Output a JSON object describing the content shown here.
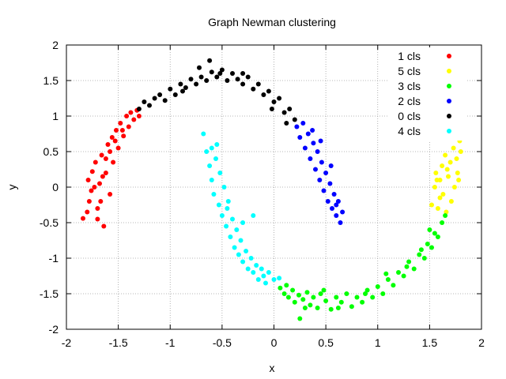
{
  "chart_data": {
    "type": "scatter",
    "title": "Graph Newman clustering",
    "xlabel": "x",
    "ylabel": "y",
    "xlim": [
      -2,
      2
    ],
    "ylim": [
      -2,
      2
    ],
    "xticks": [
      -2,
      -1.5,
      -1,
      -0.5,
      0,
      0.5,
      1,
      1.5,
      2
    ],
    "yticks": [
      -2,
      -1.5,
      -1,
      -0.5,
      0,
      0.5,
      1,
      1.5,
      2
    ],
    "grid": true,
    "legend_position": "top-right",
    "series": [
      {
        "name": "1 cls",
        "color": "#ff0000",
        "points": [
          [
            -1.84,
            -0.44
          ],
          [
            -1.8,
            -0.35
          ],
          [
            -1.78,
            -0.2
          ],
          [
            -1.76,
            -0.05
          ],
          [
            -1.79,
            0.1
          ],
          [
            -1.75,
            0.22
          ],
          [
            -1.72,
            0.35
          ],
          [
            -1.7,
            -0.3
          ],
          [
            -1.68,
            0.05
          ],
          [
            -1.66,
            0.45
          ],
          [
            -1.64,
            -0.55
          ],
          [
            -1.62,
            0.2
          ],
          [
            -1.6,
            0.6
          ],
          [
            -1.58,
            -0.1
          ],
          [
            -1.56,
            0.7
          ],
          [
            -1.55,
            0.35
          ],
          [
            -1.52,
            0.8
          ],
          [
            -1.5,
            0.55
          ],
          [
            -1.48,
            0.9
          ],
          [
            -1.45,
            0.72
          ],
          [
            -1.42,
            1.0
          ],
          [
            -1.4,
            0.85
          ],
          [
            -1.38,
            1.05
          ],
          [
            -1.35,
            0.95
          ],
          [
            -1.32,
            1.08
          ],
          [
            -1.3,
            1.0
          ],
          [
            -1.7,
            -0.45
          ],
          [
            -1.73,
            0.0
          ],
          [
            -1.62,
            0.4
          ],
          [
            -1.58,
            0.5
          ],
          [
            -1.67,
            -0.2
          ],
          [
            -1.65,
            0.15
          ],
          [
            -1.53,
            0.65
          ],
          [
            -1.46,
            0.8
          ]
        ]
      },
      {
        "name": "5 cls",
        "color": "#ffff00",
        "points": [
          [
            1.52,
            -0.25
          ],
          [
            1.55,
            0.0
          ],
          [
            1.56,
            0.2
          ],
          [
            1.58,
            -0.3
          ],
          [
            1.6,
            0.1
          ],
          [
            1.62,
            0.3
          ],
          [
            1.63,
            -0.1
          ],
          [
            1.65,
            0.45
          ],
          [
            1.66,
            -0.35
          ],
          [
            1.68,
            0.15
          ],
          [
            1.7,
            0.35
          ],
          [
            1.71,
            -0.2
          ],
          [
            1.73,
            0.55
          ],
          [
            1.74,
            0.0
          ],
          [
            1.76,
            0.4
          ],
          [
            1.77,
            0.2
          ],
          [
            1.79,
            0.65
          ],
          [
            1.8,
            0.5
          ],
          [
            1.78,
            0.1
          ],
          [
            1.67,
            0.25
          ],
          [
            1.6,
            -0.15
          ],
          [
            1.57,
            0.1
          ]
        ]
      },
      {
        "name": "3 cls",
        "color": "#00ff00",
        "points": [
          [
            0.06,
            -1.42
          ],
          [
            0.1,
            -1.5
          ],
          [
            0.14,
            -1.55
          ],
          [
            0.18,
            -1.45
          ],
          [
            0.2,
            -1.62
          ],
          [
            0.24,
            -1.52
          ],
          [
            0.25,
            -1.85
          ],
          [
            0.28,
            -1.58
          ],
          [
            0.32,
            -1.48
          ],
          [
            0.35,
            -1.66
          ],
          [
            0.38,
            -1.55
          ],
          [
            0.42,
            -1.7
          ],
          [
            0.45,
            -1.5
          ],
          [
            0.5,
            -1.6
          ],
          [
            0.55,
            -1.72
          ],
          [
            0.6,
            -1.55
          ],
          [
            0.65,
            -1.62
          ],
          [
            0.7,
            -1.5
          ],
          [
            0.75,
            -1.68
          ],
          [
            0.8,
            -1.55
          ],
          [
            0.85,
            -1.62
          ],
          [
            0.9,
            -1.45
          ],
          [
            0.95,
            -1.55
          ],
          [
            1.0,
            -1.4
          ],
          [
            1.05,
            -1.5
          ],
          [
            1.1,
            -1.3
          ],
          [
            1.15,
            -1.38
          ],
          [
            1.2,
            -1.2
          ],
          [
            1.25,
            -1.25
          ],
          [
            1.3,
            -1.05
          ],
          [
            1.35,
            -1.15
          ],
          [
            1.4,
            -0.95
          ],
          [
            1.45,
            -1.0
          ],
          [
            1.48,
            -0.8
          ],
          [
            1.52,
            -0.85
          ],
          [
            1.55,
            -0.65
          ],
          [
            1.58,
            -0.7
          ],
          [
            1.62,
            -0.5
          ],
          [
            1.65,
            -0.4
          ],
          [
            0.12,
            -1.38
          ],
          [
            0.3,
            -1.7
          ],
          [
            0.48,
            -1.45
          ],
          [
            0.62,
            -1.7
          ],
          [
            0.88,
            -1.5
          ],
          [
            1.08,
            -1.22
          ],
          [
            1.28,
            -1.12
          ],
          [
            1.42,
            -0.88
          ],
          [
            1.5,
            -0.6
          ]
        ]
      },
      {
        "name": "2 cls",
        "color": "#0000ff",
        "points": [
          [
            0.22,
            0.85
          ],
          [
            0.25,
            0.7
          ],
          [
            0.28,
            0.9
          ],
          [
            0.3,
            0.55
          ],
          [
            0.33,
            0.75
          ],
          [
            0.35,
            0.4
          ],
          [
            0.38,
            0.62
          ],
          [
            0.4,
            0.25
          ],
          [
            0.42,
            0.5
          ],
          [
            0.44,
            0.1
          ],
          [
            0.46,
            0.35
          ],
          [
            0.48,
            -0.05
          ],
          [
            0.5,
            0.2
          ],
          [
            0.52,
            -0.2
          ],
          [
            0.54,
            0.05
          ],
          [
            0.56,
            -0.3
          ],
          [
            0.58,
            -0.1
          ],
          [
            0.6,
            -0.4
          ],
          [
            0.62,
            -0.2
          ],
          [
            0.64,
            -0.5
          ],
          [
            0.66,
            -0.35
          ],
          [
            0.45,
            0.65
          ],
          [
            0.37,
            0.8
          ],
          [
            0.55,
            0.3
          ],
          [
            0.6,
            -0.25
          ]
        ]
      },
      {
        "name": "0 cls",
        "color": "#000000",
        "points": [
          [
            -1.3,
            1.1
          ],
          [
            -1.25,
            1.2
          ],
          [
            -1.2,
            1.15
          ],
          [
            -1.15,
            1.25
          ],
          [
            -1.1,
            1.3
          ],
          [
            -1.05,
            1.22
          ],
          [
            -1.0,
            1.38
          ],
          [
            -0.95,
            1.3
          ],
          [
            -0.9,
            1.45
          ],
          [
            -0.85,
            1.4
          ],
          [
            -0.8,
            1.52
          ],
          [
            -0.75,
            1.45
          ],
          [
            -0.72,
            1.68
          ],
          [
            -0.7,
            1.55
          ],
          [
            -0.65,
            1.5
          ],
          [
            -0.6,
            1.62
          ],
          [
            -0.55,
            1.55
          ],
          [
            -0.5,
            1.65
          ],
          [
            -0.45,
            1.5
          ],
          [
            -0.4,
            1.6
          ],
          [
            -0.35,
            1.52
          ],
          [
            -0.3,
            1.45
          ],
          [
            -0.25,
            1.55
          ],
          [
            -0.2,
            1.38
          ],
          [
            -0.15,
            1.45
          ],
          [
            -0.1,
            1.3
          ],
          [
            -0.05,
            1.35
          ],
          [
            0.0,
            1.2
          ],
          [
            0.05,
            1.25
          ],
          [
            0.1,
            1.05
          ],
          [
            0.15,
            1.1
          ],
          [
            0.2,
            0.95
          ],
          [
            -0.62,
            1.78
          ],
          [
            -0.52,
            1.6
          ],
          [
            -0.88,
            1.35
          ],
          [
            -0.02,
            1.1
          ],
          [
            0.12,
            0.9
          ],
          [
            -0.3,
            1.6
          ]
        ]
      },
      {
        "name": "4 cls",
        "color": "#00ffff",
        "points": [
          [
            -0.68,
            0.75
          ],
          [
            -0.65,
            0.5
          ],
          [
            -0.62,
            0.3
          ],
          [
            -0.6,
            0.1
          ],
          [
            -0.58,
            -0.1
          ],
          [
            -0.56,
            0.4
          ],
          [
            -0.55,
            0.6
          ],
          [
            -0.53,
            -0.25
          ],
          [
            -0.52,
            0.2
          ],
          [
            -0.5,
            -0.4
          ],
          [
            -0.48,
            0.0
          ],
          [
            -0.46,
            -0.55
          ],
          [
            -0.44,
            -0.2
          ],
          [
            -0.42,
            -0.7
          ],
          [
            -0.4,
            -0.45
          ],
          [
            -0.38,
            -0.85
          ],
          [
            -0.36,
            -0.6
          ],
          [
            -0.34,
            -0.95
          ],
          [
            -0.32,
            -0.75
          ],
          [
            -0.3,
            -1.05
          ],
          [
            -0.27,
            -0.9
          ],
          [
            -0.25,
            -1.15
          ],
          [
            -0.22,
            -1.0
          ],
          [
            -0.2,
            -1.2
          ],
          [
            -0.17,
            -1.1
          ],
          [
            -0.15,
            -1.3
          ],
          [
            -0.12,
            -1.15
          ],
          [
            -0.1,
            -1.25
          ],
          [
            -0.08,
            -1.35
          ],
          [
            -0.05,
            -1.2
          ],
          [
            0.0,
            -1.3
          ],
          [
            0.05,
            -1.28
          ],
          [
            -0.2,
            -0.4
          ],
          [
            -0.6,
            0.55
          ],
          [
            -0.45,
            -0.3
          ],
          [
            -0.3,
            -0.5
          ]
        ]
      }
    ]
  }
}
